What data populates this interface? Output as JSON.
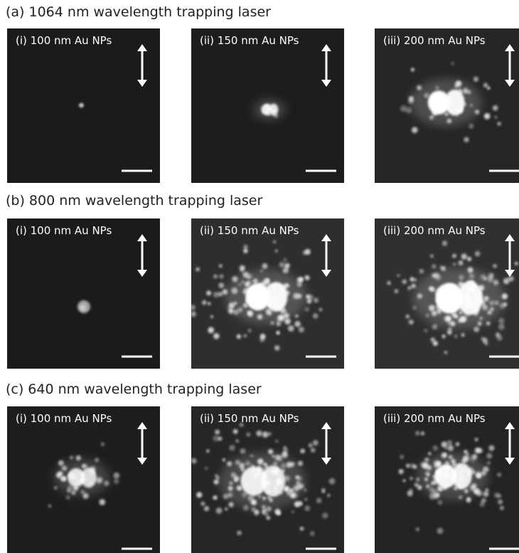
{
  "rows": [
    {
      "title": "(a) 1064 nm wavelength trapping laser",
      "panels": [
        {
          "label": "(i) 100 nm Au NPs"
        },
        {
          "label": "(ii) 150 nm Au NPs"
        },
        {
          "label": "(iii) 200 nm Au NPs"
        }
      ]
    },
    {
      "title": "(b) 800 nm wavelength trapping laser",
      "panels": [
        {
          "label": "(i) 100 nm Au NPs"
        },
        {
          "label": "(ii) 150 nm Au NPs"
        },
        {
          "label": "(iii) 200 nm Au NPs"
        }
      ]
    },
    {
      "title": "(c) 640 nm wavelength trapping laser",
      "panels": [
        {
          "label": "(i) 100 nm Au NPs"
        },
        {
          "label": "(ii) 150 nm Au NPs"
        },
        {
          "label": "(iii) 200 nm Au NPs"
        }
      ]
    }
  ]
}
